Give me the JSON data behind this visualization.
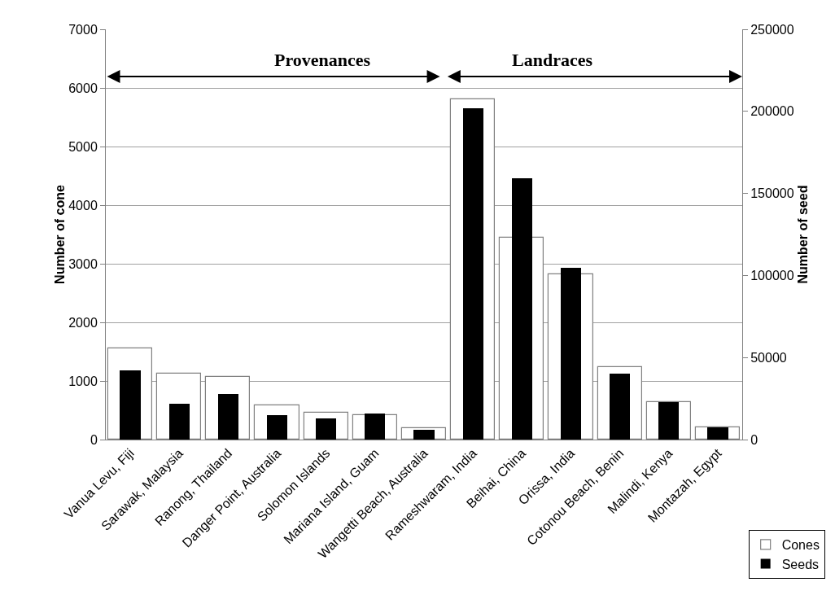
{
  "chart_data": {
    "type": "bar",
    "categories": [
      "Vanua Levu, Fiji",
      "Sarawak, Malaysia",
      "Ranong, Thailand",
      "Danger Point, Australia",
      "Solomon Islands",
      "Mariana Island, Guam",
      "Wangetti Beach, Australia",
      "Rameshwaram, India",
      "Beihai, China",
      "Orissa, India",
      "Cotonou Beach, Benin",
      "Malindi, Kenya",
      "Montazah, Egypt"
    ],
    "series": [
      {
        "name": "Cones",
        "color": "#ffffff",
        "values": [
          1550,
          1130,
          1070,
          580,
          460,
          410,
          200,
          5800,
          3450,
          2820,
          1240,
          640,
          210
        ]
      },
      {
        "name": "Seeds",
        "color": "#000000",
        "axis": "y2",
        "values": [
          42000,
          22000,
          28000,
          15000,
          13000,
          16000,
          6000,
          202000,
          159000,
          104500,
          40000,
          23000,
          7600
        ]
      }
    ],
    "ylabel": "Number of cone",
    "y2label": "Number of seed",
    "ylim": [
      0,
      7000
    ],
    "yticks": [
      0,
      1000,
      2000,
      3000,
      4000,
      5000,
      6000,
      7000
    ],
    "y2lim": [
      0,
      250000
    ],
    "y2ticks": [
      0,
      50000,
      100000,
      150000,
      200000,
      250000
    ],
    "annotations": [
      "Provenances",
      "Landraces"
    ],
    "grid": "y",
    "legend": "bottom right"
  }
}
